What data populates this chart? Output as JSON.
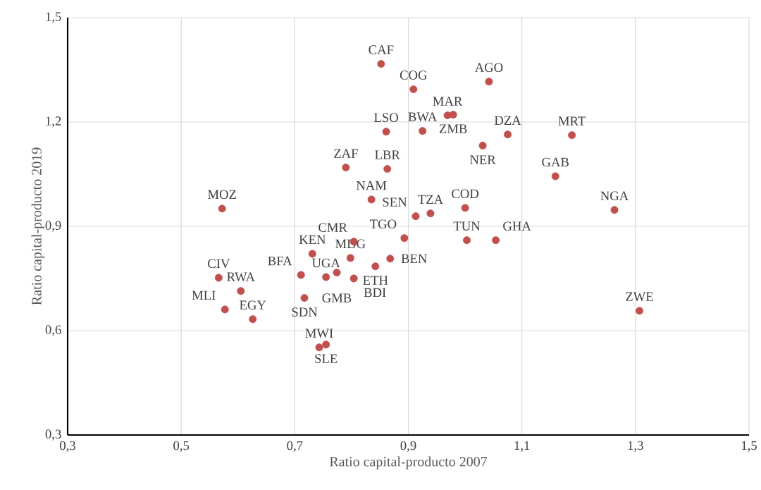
{
  "chart_data": {
    "type": "scatter",
    "xlabel": "Ratio capital-producto 2007",
    "ylabel": "Ratio capital-producto 2019",
    "x": [
      0.852,
      0.909,
      1.042,
      0.969,
      0.979,
      0.861,
      0.925,
      1.075,
      1.031,
      1.188,
      0.79,
      0.863,
      1.159,
      0.835,
      0.572,
      1.263,
      1.0,
      0.939,
      0.913,
      0.893,
      1.003,
      1.054,
      0.804,
      0.731,
      0.798,
      0.868,
      0.842,
      0.711,
      0.774,
      0.755,
      0.804,
      0.717,
      0.566,
      0.605,
      0.577,
      0.626,
      0.743,
      0.755,
      1.307
    ],
    "values": [
      1.367,
      1.294,
      1.316,
      1.219,
      1.221,
      1.172,
      1.174,
      1.164,
      1.132,
      1.162,
      1.069,
      1.065,
      1.044,
      0.977,
      0.951,
      0.947,
      0.953,
      0.937,
      0.929,
      0.866,
      0.86,
      0.86,
      0.856,
      0.821,
      0.809,
      0.807,
      0.785,
      0.76,
      0.767,
      0.754,
      0.75,
      0.694,
      0.752,
      0.714,
      0.661,
      0.633,
      0.552,
      0.56,
      0.657
    ],
    "color": "#c0504d",
    "annotations": [
      {
        "text": "CAF",
        "x": 0.852,
        "y": 1.367
      },
      {
        "text": "COG",
        "x": 0.909,
        "y": 1.294
      },
      {
        "text": "AGO",
        "x": 1.042,
        "y": 1.316
      },
      {
        "text": "MAR",
        "x": 0.969,
        "y": 1.219
      },
      {
        "text": "ZMB",
        "x": 0.979,
        "y": 1.221
      },
      {
        "text": "LSO",
        "x": 0.861,
        "y": 1.172
      },
      {
        "text": "BWA",
        "x": 0.925,
        "y": 1.174
      },
      {
        "text": "DZA",
        "x": 1.075,
        "y": 1.164
      },
      {
        "text": "NER",
        "x": 1.031,
        "y": 1.132
      },
      {
        "text": "MRT",
        "x": 1.188,
        "y": 1.162
      },
      {
        "text": "ZAF",
        "x": 0.79,
        "y": 1.069
      },
      {
        "text": "LBR",
        "x": 0.863,
        "y": 1.065
      },
      {
        "text": "GAB",
        "x": 1.159,
        "y": 1.044
      },
      {
        "text": "NAM",
        "x": 0.835,
        "y": 0.977
      },
      {
        "text": "MOZ",
        "x": 0.572,
        "y": 0.951
      },
      {
        "text": "NGA",
        "x": 1.263,
        "y": 0.947
      },
      {
        "text": "COD",
        "x": 1.0,
        "y": 0.953
      },
      {
        "text": "TZA",
        "x": 0.939,
        "y": 0.937
      },
      {
        "text": "SEN",
        "x": 0.913,
        "y": 0.929
      },
      {
        "text": "TGO",
        "x": 0.893,
        "y": 0.866
      },
      {
        "text": "TUN",
        "x": 1.003,
        "y": 0.86
      },
      {
        "text": "GHA",
        "x": 1.054,
        "y": 0.86
      },
      {
        "text": "CMR",
        "x": 0.804,
        "y": 0.856
      },
      {
        "text": "KEN",
        "x": 0.731,
        "y": 0.821
      },
      {
        "text": "MDG",
        "x": 0.798,
        "y": 0.809
      },
      {
        "text": "BEN",
        "x": 0.868,
        "y": 0.807
      },
      {
        "text": "ETH",
        "x": 0.842,
        "y": 0.785
      },
      {
        "text": "BFA",
        "x": 0.711,
        "y": 0.76
      },
      {
        "text": "GMB",
        "x": 0.774,
        "y": 0.767
      },
      {
        "text": "UGA",
        "x": 0.755,
        "y": 0.754
      },
      {
        "text": "BDI",
        "x": 0.804,
        "y": 0.75
      },
      {
        "text": "SDN",
        "x": 0.717,
        "y": 0.694
      },
      {
        "text": "CIV",
        "x": 0.566,
        "y": 0.752
      },
      {
        "text": "RWA",
        "x": 0.605,
        "y": 0.714
      },
      {
        "text": "MLI",
        "x": 0.577,
        "y": 0.661
      },
      {
        "text": "EGY",
        "x": 0.626,
        "y": 0.633
      },
      {
        "text": "MWI",
        "x": 0.743,
        "y": 0.552
      },
      {
        "text": "SLE",
        "x": 0.755,
        "y": 0.56
      },
      {
        "text": "ZWE",
        "x": 1.307,
        "y": 0.657
      }
    ],
    "xlim": [
      0.3,
      1.5
    ],
    "ylim": [
      0.3,
      1.5
    ],
    "xticks": [
      {
        "value": 0.3,
        "label": "0,3"
      },
      {
        "value": 0.5,
        "label": "0,5"
      },
      {
        "value": 0.7,
        "label": "0,7"
      },
      {
        "value": 0.9,
        "label": "0,9"
      },
      {
        "value": 1.1,
        "label": "1,1"
      },
      {
        "value": 1.3,
        "label": "1,3"
      },
      {
        "value": 1.5,
        "label": "1,5"
      }
    ],
    "yticks": [
      {
        "value": 0.3,
        "label": "0,3"
      },
      {
        "value": 0.6,
        "label": "0,6"
      },
      {
        "value": 0.9,
        "label": "0,9"
      },
      {
        "value": 1.2,
        "label": "1,2"
      },
      {
        "value": 1.5,
        "label": "1,5"
      }
    ],
    "grid": true
  }
}
